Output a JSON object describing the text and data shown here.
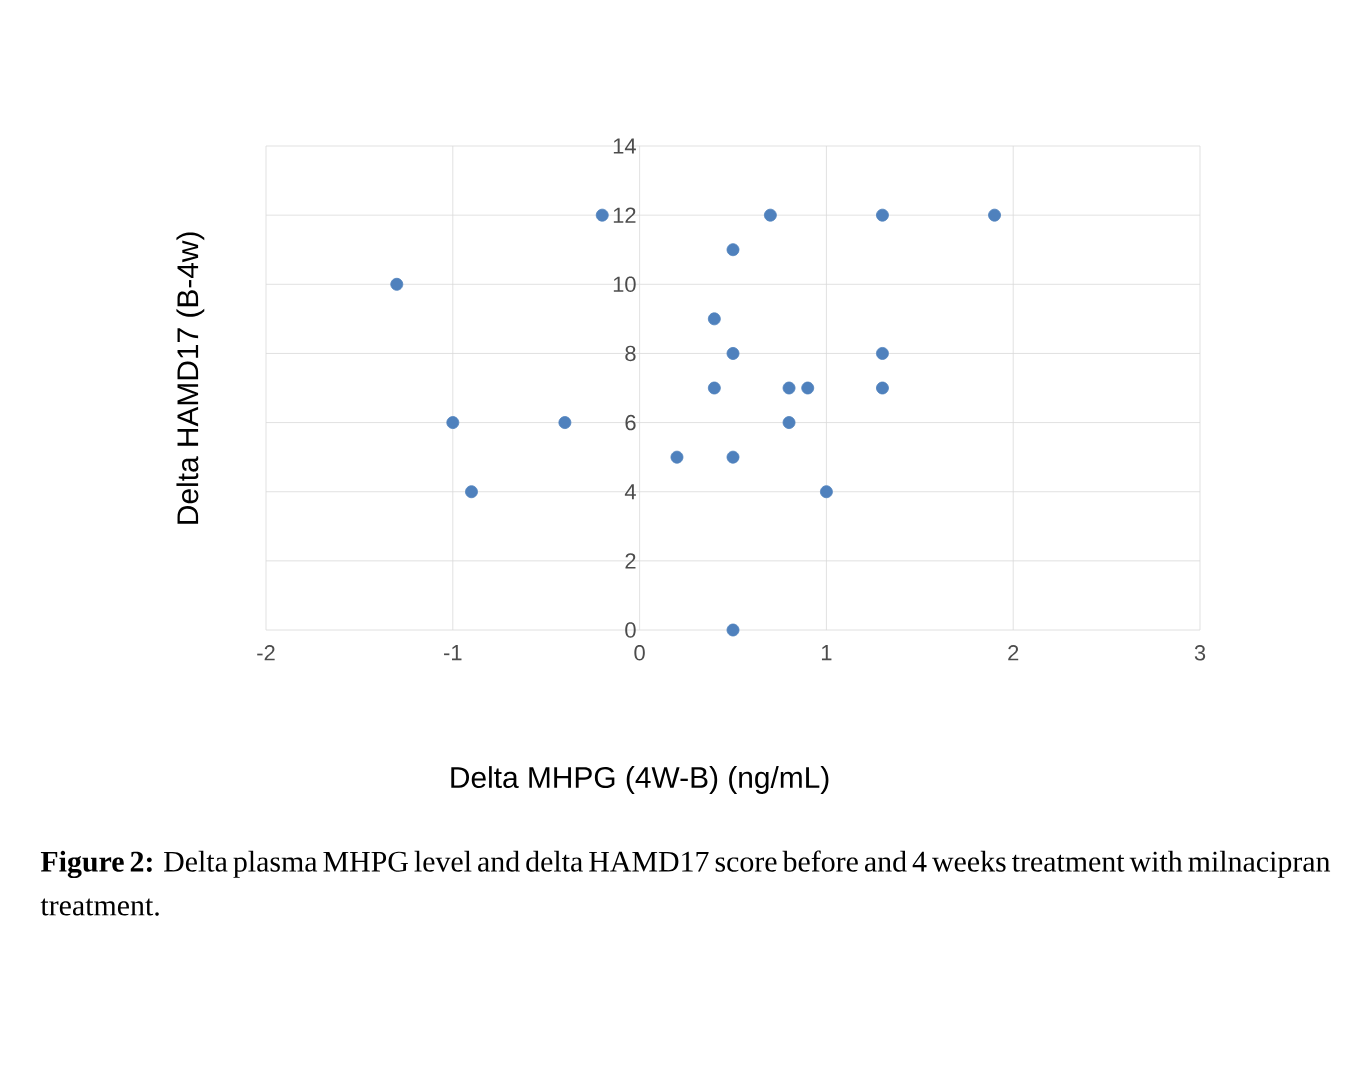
{
  "chart_data": {
    "type": "scatter",
    "xlabel": "Delta MHPG (4W-B) (ng/mL)",
    "ylabel": "Delta HAMD17 (B-4w)",
    "x": [
      -0.2,
      0.7,
      1.3,
      1.9,
      0.5,
      -1.3,
      0.4,
      0.5,
      1.3,
      0.4,
      0.8,
      0.9,
      1.3,
      -1,
      -0.4,
      0.8,
      0.2,
      0.5,
      -0.9,
      1,
      0.5
    ],
    "values": [
      12,
      12,
      12,
      12,
      11,
      10,
      9,
      8,
      8,
      7,
      7,
      7,
      7,
      6,
      6,
      6,
      5,
      5,
      4,
      4,
      0
    ],
    "color": "#4f81bd",
    "marker": "circle",
    "grid": true,
    "xlim": [
      -2,
      3
    ],
    "xticks": [
      -2,
      -1,
      0,
      1,
      2,
      3
    ],
    "ylim": [
      0,
      14
    ],
    "yticks": [
      0,
      2,
      4,
      6,
      8,
      10,
      12,
      14
    ],
    "annotations": [
      "**Figure 2:** Delta plasma MHPG level and delta HAMD17 score before and 4 weeks treatment with milnacipran treatment."
    ]
  }
}
